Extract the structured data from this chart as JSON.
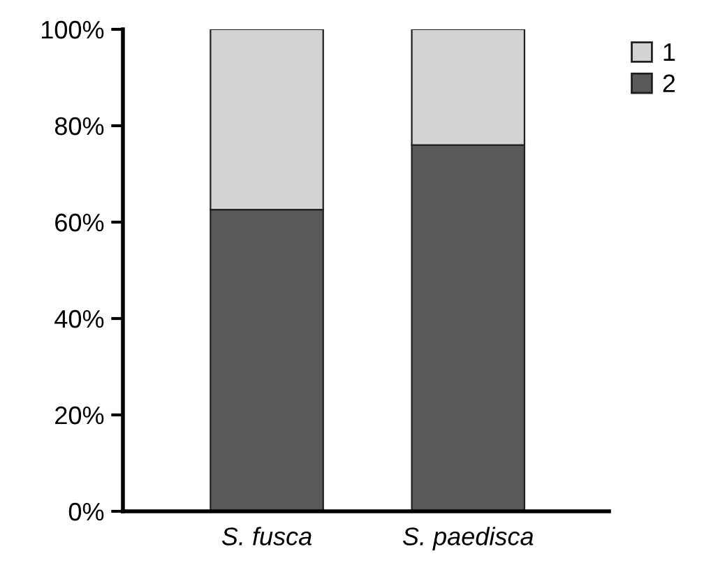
{
  "chart_data": {
    "type": "bar",
    "stacked": true,
    "categories": [
      "S. fusca",
      "S. paedisca"
    ],
    "series": [
      {
        "name": "2",
        "color": "#58595b",
        "values": [
          62.6,
          76.0
        ]
      },
      {
        "name": "1",
        "color": "#d1d3d4",
        "values": [
          37.4,
          24.0
        ]
      }
    ],
    "ylim": [
      0,
      100
    ],
    "yticks": [
      {
        "value": 0,
        "label": "0%"
      },
      {
        "value": 20,
        "label": "20%"
      },
      {
        "value": 40,
        "label": "40%"
      },
      {
        "value": 60,
        "label": "60%"
      },
      {
        "value": 80,
        "label": "80%"
      },
      {
        "value": 100,
        "label": "100%"
      }
    ],
    "legend": "top right",
    "grid": false
  }
}
